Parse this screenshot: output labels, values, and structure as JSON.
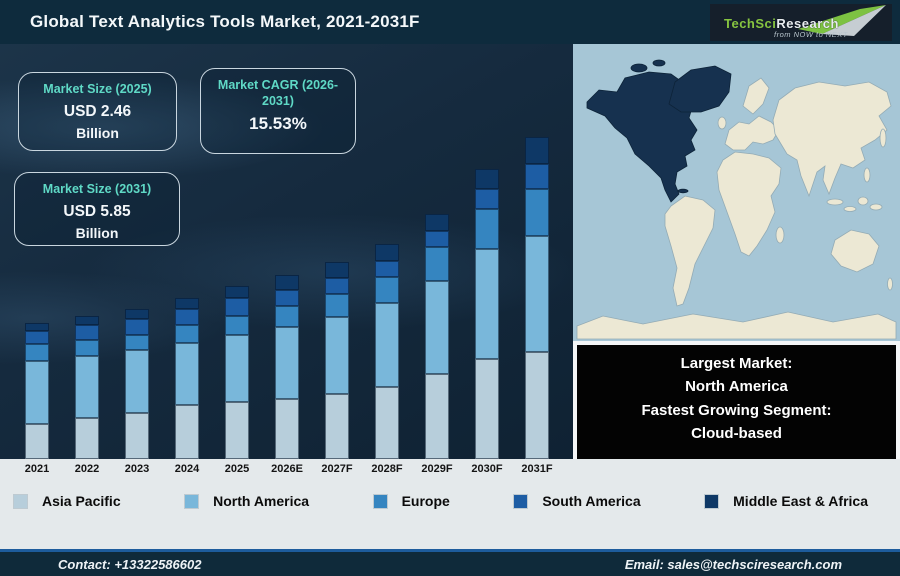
{
  "header": {
    "title": "Global Text Analytics Tools Market, 2021-2031F",
    "logo": {
      "brand_primary": "TechSci",
      "brand_secondary": "Research",
      "tagline": "from NOW to NEXT"
    }
  },
  "stats": [
    {
      "label": "Market Size (2025)",
      "value": "USD 2.46",
      "unit": "Billion"
    },
    {
      "label": "Market CAGR (2026-2031)",
      "value": "15.53%",
      "unit": ""
    },
    {
      "label": "Market Size (2031)",
      "value": "USD 5.85",
      "unit": "Billion"
    }
  ],
  "chart_data": {
    "type": "bar",
    "stacked": true,
    "title": "Global Text Analytics Tools Market, 2021-2031F",
    "unit": "relative segment height in px (schematic chart, no value axis shown)",
    "labeled_values": {
      "market_size_2025": "USD 2.46 Billion",
      "market_size_2031": "USD 5.85 Billion",
      "cagr_2026_2031": "15.53%"
    },
    "categories": [
      "2021",
      "2022",
      "2023",
      "2024",
      "2025",
      "2026E",
      "2027F",
      "2028F",
      "2029F",
      "2030F",
      "2031F"
    ],
    "series": [
      {
        "name": "Asia Pacific",
        "color": "#b7cedb",
        "values": [
          35,
          41,
          46,
          54,
          57,
          60,
          65,
          72,
          85,
          100,
          107
        ]
      },
      {
        "name": "North America",
        "color": "#79b7da",
        "values": [
          63,
          62,
          63,
          62,
          67,
          72,
          77,
          84,
          93,
          110,
          116
        ]
      },
      {
        "name": "Europe",
        "color": "#3585c0",
        "values": [
          17,
          16,
          15,
          18,
          19,
          21,
          23,
          26,
          34,
          40,
          47
        ]
      },
      {
        "name": "South America",
        "color": "#1d5da4",
        "values": [
          13,
          15,
          16,
          16,
          18,
          16,
          16,
          16,
          16,
          20,
          25
        ]
      },
      {
        "name": "Middle East & Africa",
        "color": "#0e3866",
        "values": [
          8,
          9,
          10,
          11,
          12,
          15,
          16,
          17,
          17,
          20,
          27
        ]
      }
    ],
    "legend_position": "bottom",
    "grid": false
  },
  "legend": {
    "items": [
      {
        "label": "Asia Pacific",
        "color": "#b7cedb"
      },
      {
        "label": "North America",
        "color": "#79b7da"
      },
      {
        "label": "Europe",
        "color": "#3585c0"
      },
      {
        "label": "South America",
        "color": "#1d5da4"
      },
      {
        "label": "Middle East & Africa",
        "color": "#0e3866"
      }
    ]
  },
  "map": {
    "highlighted_region": "North America",
    "highlight_color": "#16314f",
    "land_color": "#ece8d4",
    "ocean_color": "#a6c6d6"
  },
  "info_box": {
    "lines": [
      "Largest Market:",
      "North America",
      "Fastest Growing Segment:",
      "Cloud-based"
    ]
  },
  "footer": {
    "contact": "Contact: +13322586602",
    "email": "Email: sales@techsciresearch.com"
  }
}
